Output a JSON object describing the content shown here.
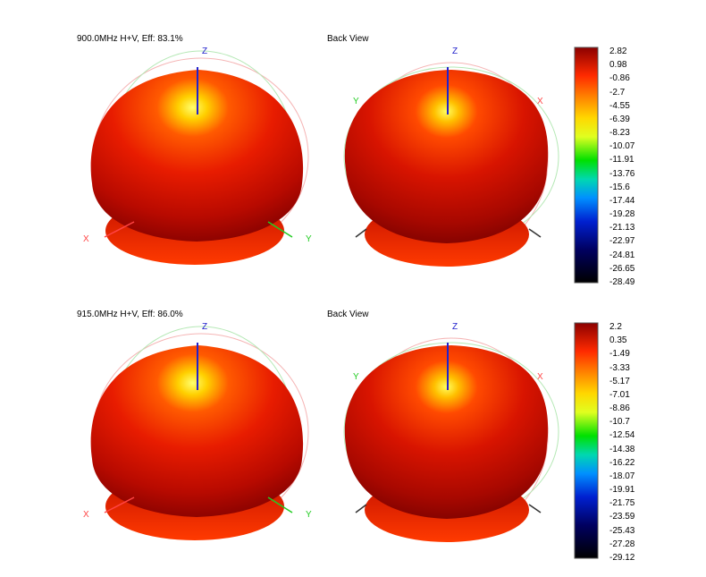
{
  "colors": {
    "scale": [
      "#8b0000",
      "#ff2a00",
      "#ffbf00",
      "#ffff40",
      "#00e000",
      "#00d0c0",
      "#0040ff",
      "#000080",
      "#000000"
    ],
    "axis_x": "#ff4444",
    "axis_y": "#22cc22",
    "axis_z": "#2222cc",
    "orbit_red": "#f5b5b5",
    "orbit_green": "#b5e8b5"
  },
  "chart_data": [
    {
      "type": "heatmap",
      "title": "900.0MHz H+V, Eff: 83.1%",
      "subtitle": "Back View",
      "axes": {
        "x": "X",
        "y": "Y",
        "z": "Z"
      },
      "colorbar": {
        "min": -28.49,
        "max": 2.82,
        "ticks": [
          "2.82",
          "0.98",
          "-0.86",
          "-2.7",
          "-4.55",
          "-6.39",
          "-8.23",
          "-10.07",
          "-11.91",
          "-13.76",
          "-15.6",
          "-17.44",
          "-19.28",
          "-21.13",
          "-22.97",
          "-24.81",
          "-26.65",
          "-28.49"
        ]
      }
    },
    {
      "type": "heatmap",
      "title": "915.0MHz H+V, Eff: 86.0%",
      "subtitle": "Back View",
      "axes": {
        "x": "X",
        "y": "Y",
        "z": "Z"
      },
      "colorbar": {
        "min": -29.12,
        "max": 2.2,
        "ticks": [
          "2.2",
          "0.35",
          "-1.49",
          "-3.33",
          "-5.17",
          "-7.01",
          "-8.86",
          "-10.7",
          "-12.54",
          "-14.38",
          "-16.22",
          "-18.07",
          "-19.91",
          "-21.75",
          "-23.59",
          "-25.43",
          "-27.28",
          "-29.12"
        ]
      }
    }
  ]
}
